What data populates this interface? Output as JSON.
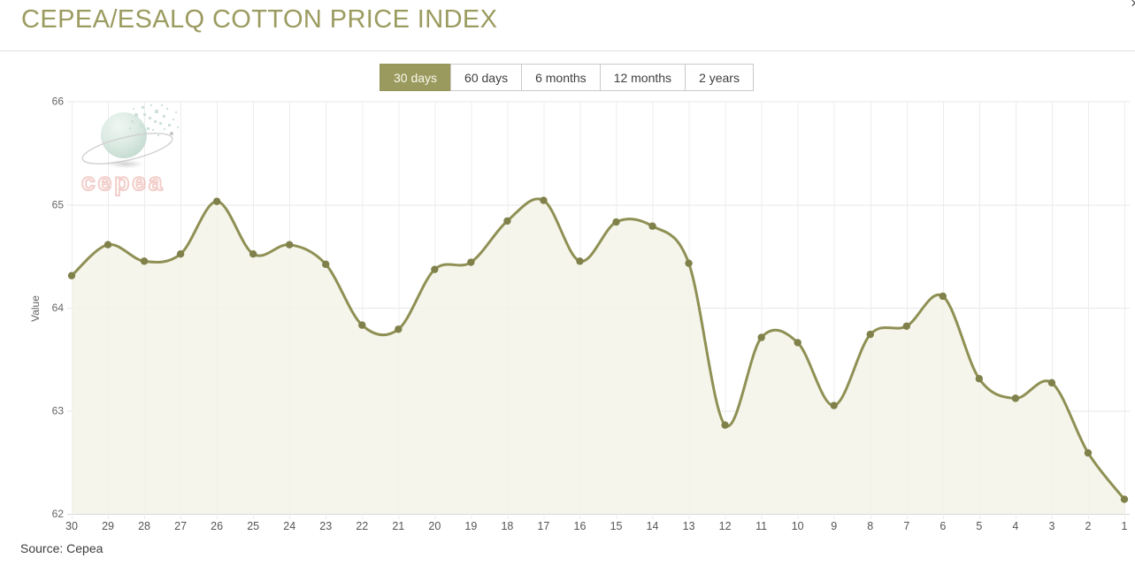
{
  "header": {
    "title": "CEPEA/ESALQ COTTON PRICE INDEX",
    "close_icon": "×"
  },
  "tabs": {
    "items": [
      {
        "label": "30 days",
        "selected": true
      },
      {
        "label": "60 days",
        "selected": false
      },
      {
        "label": "6 months",
        "selected": false
      },
      {
        "label": "12 months",
        "selected": false
      },
      {
        "label": "2 years",
        "selected": false
      }
    ]
  },
  "chart_data": {
    "type": "area",
    "title": "CEPEA/ESALQ COTTON PRICE INDEX",
    "categories": [
      "30",
      "29",
      "28",
      "27",
      "26",
      "25",
      "24",
      "23",
      "22",
      "21",
      "20",
      "19",
      "18",
      "17",
      "16",
      "15",
      "14",
      "13",
      "12",
      "11",
      "10",
      "9",
      "8",
      "7",
      "6",
      "5",
      "4",
      "3",
      "2",
      "1"
    ],
    "values": [
      64.31,
      64.61,
      64.45,
      64.52,
      65.03,
      64.52,
      64.61,
      64.42,
      63.83,
      63.79,
      64.37,
      64.44,
      64.84,
      65.04,
      64.45,
      64.83,
      64.79,
      64.43,
      62.86,
      63.71,
      63.66,
      63.05,
      63.74,
      63.82,
      64.11,
      63.31,
      63.12,
      63.27,
      62.59,
      62.14
    ],
    "xlabel": "",
    "ylabel": "Value",
    "ylim": [
      62,
      66
    ],
    "yticks": [
      62,
      63,
      64,
      65,
      66
    ],
    "grid": true,
    "legend": "none",
    "colors": {
      "line": "#8f9054",
      "marker": "#80814a",
      "area_fill": "#f3f3e7",
      "grid_h": "#e7e7e7",
      "grid_v": "#ececec",
      "axis_line": "#d8d8d8",
      "tick_text": "#666666",
      "accent": "#9a9a5e"
    }
  },
  "watermark": {
    "text": "cepea"
  },
  "footer": {
    "source": "Source: Cepea"
  }
}
